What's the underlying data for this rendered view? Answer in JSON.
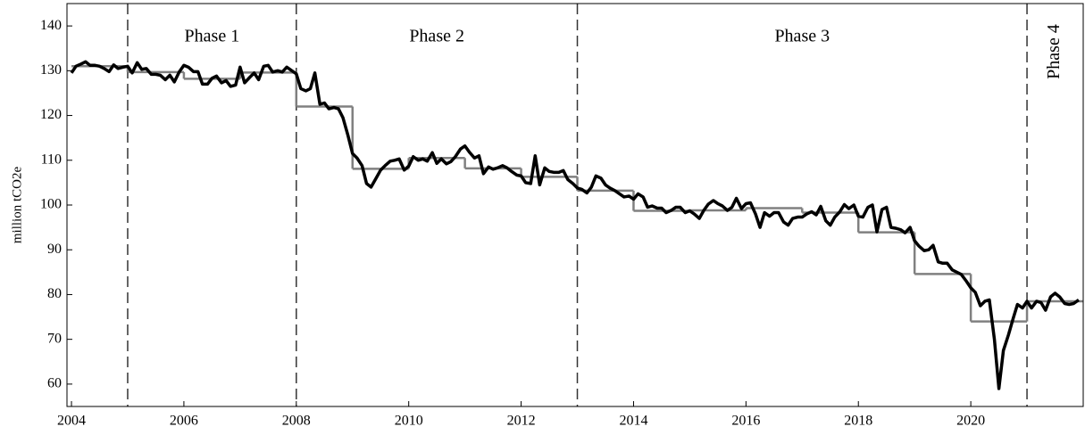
{
  "chart_data": {
    "type": "line",
    "ylabel": "million tCO2e",
    "xlim": [
      2003.92,
      2022.0
    ],
    "ylim": [
      55,
      145
    ],
    "xticks": [
      2004,
      2006,
      2008,
      2010,
      2012,
      2014,
      2016,
      2018,
      2020
    ],
    "yticks": [
      60,
      70,
      80,
      90,
      100,
      110,
      120,
      130,
      140
    ],
    "phase_lines": [
      2005,
      2008,
      2013,
      2021
    ],
    "phase_labels": [
      "Phase 1",
      "Phase 2",
      "Phase 3",
      "Phase 4"
    ],
    "series": [
      {
        "color": "#808080",
        "step": true,
        "x": [
          2004,
          2005,
          2006,
          2007,
          2008,
          2009,
          2010,
          2011,
          2012,
          2013,
          2014,
          2015,
          2016,
          2017,
          2018,
          2019,
          2020,
          2021
        ],
        "values": [
          131,
          129.7,
          128.2,
          129.6,
          122,
          108.1,
          110.5,
          108.2,
          106.3,
          103.2,
          98.7,
          98.8,
          99.3,
          98.3,
          93.9,
          84.6,
          74,
          78.5
        ]
      },
      {
        "color": "#000000",
        "step": false,
        "x": [
          2004,
          2004.08,
          2004.17,
          2004.25,
          2004.33,
          2004.42,
          2004.5,
          2004.58,
          2004.67,
          2004.75,
          2004.83,
          2004.92,
          2005,
          2005.08,
          2005.17,
          2005.25,
          2005.33,
          2005.42,
          2005.5,
          2005.58,
          2005.67,
          2005.75,
          2005.83,
          2005.92,
          2006,
          2006.08,
          2006.17,
          2006.25,
          2006.33,
          2006.42,
          2006.5,
          2006.58,
          2006.67,
          2006.75,
          2006.83,
          2006.92,
          2007,
          2007.08,
          2007.17,
          2007.25,
          2007.33,
          2007.42,
          2007.5,
          2007.58,
          2007.67,
          2007.75,
          2007.83,
          2007.92,
          2008,
          2008.08,
          2008.17,
          2008.25,
          2008.33,
          2008.42,
          2008.5,
          2008.58,
          2008.67,
          2008.75,
          2008.83,
          2008.92,
          2009,
          2009.08,
          2009.17,
          2009.25,
          2009.33,
          2009.42,
          2009.5,
          2009.58,
          2009.67,
          2009.75,
          2009.83,
          2009.92,
          2010,
          2010.08,
          2010.17,
          2010.25,
          2010.33,
          2010.42,
          2010.5,
          2010.58,
          2010.67,
          2010.75,
          2010.83,
          2010.92,
          2011,
          2011.08,
          2011.17,
          2011.25,
          2011.33,
          2011.42,
          2011.5,
          2011.58,
          2011.67,
          2011.75,
          2011.83,
          2011.92,
          2012,
          2012.08,
          2012.17,
          2012.25,
          2012.33,
          2012.42,
          2012.5,
          2012.58,
          2012.67,
          2012.75,
          2012.83,
          2012.92,
          2013,
          2013.08,
          2013.17,
          2013.25,
          2013.33,
          2013.42,
          2013.5,
          2013.58,
          2013.67,
          2013.75,
          2013.83,
          2013.92,
          2014,
          2014.08,
          2014.17,
          2014.25,
          2014.33,
          2014.42,
          2014.5,
          2014.58,
          2014.67,
          2014.75,
          2014.83,
          2014.92,
          2015,
          2015.08,
          2015.17,
          2015.25,
          2015.33,
          2015.42,
          2015.5,
          2015.58,
          2015.67,
          2015.75,
          2015.83,
          2015.92,
          2016,
          2016.08,
          2016.17,
          2016.25,
          2016.33,
          2016.42,
          2016.5,
          2016.58,
          2016.67,
          2016.75,
          2016.83,
          2016.92,
          2017,
          2017.08,
          2017.17,
          2017.25,
          2017.33,
          2017.42,
          2017.5,
          2017.58,
          2017.67,
          2017.75,
          2017.83,
          2017.92,
          2018,
          2018.08,
          2018.17,
          2018.25,
          2018.33,
          2018.42,
          2018.5,
          2018.58,
          2018.67,
          2018.75,
          2018.83,
          2018.92,
          2019,
          2019.08,
          2019.17,
          2019.25,
          2019.33,
          2019.42,
          2019.5,
          2019.58,
          2019.67,
          2019.75,
          2019.83,
          2019.92,
          2020,
          2020.08,
          2020.17,
          2020.25,
          2020.33,
          2020.42,
          2020.5,
          2020.58,
          2020.67,
          2020.75,
          2020.83,
          2020.92,
          2021,
          2021.08,
          2021.17,
          2021.25,
          2021.33,
          2021.42,
          2021.5,
          2021.58,
          2021.67,
          2021.75,
          2021.83,
          2021.92
        ],
        "values": [
          129.5,
          131,
          131.5,
          132,
          131.2,
          131.2,
          131,
          130.5,
          129.8,
          131.3,
          130.5,
          130.8,
          131,
          129.5,
          131.8,
          130.3,
          130.5,
          129.2,
          129.2,
          129,
          128,
          129,
          127.5,
          129.8,
          131.2,
          130.8,
          129.8,
          129.8,
          127,
          127,
          128.3,
          128.8,
          127.3,
          127.8,
          126.5,
          126.8,
          130.8,
          127.3,
          128.5,
          129.5,
          128,
          131,
          131.2,
          129.7,
          130,
          129.7,
          130.8,
          130,
          129.3,
          126,
          125.5,
          126,
          129.5,
          122.5,
          122.8,
          121.5,
          121.8,
          121.5,
          119.5,
          115.5,
          111.5,
          110.5,
          108.8,
          104.8,
          104,
          106,
          107.8,
          108.8,
          109.8,
          110,
          110.3,
          107.8,
          108.7,
          110.8,
          110,
          110.3,
          109.8,
          111.7,
          109.3,
          110.3,
          109.2,
          109.7,
          110.8,
          112.5,
          113.2,
          111.8,
          110.5,
          111,
          107,
          108.5,
          108,
          108.3,
          108.8,
          108.3,
          107.5,
          106.7,
          106.5,
          105,
          104.8,
          111,
          104.5,
          108.3,
          107.5,
          107.3,
          107.3,
          107.7,
          105.7,
          104.8,
          103.8,
          103.5,
          102.7,
          104,
          106.5,
          106,
          104.5,
          103.8,
          103.2,
          102.5,
          101.8,
          102,
          101.3,
          102.5,
          101.8,
          99.5,
          99.8,
          99.3,
          99.3,
          98.3,
          98.8,
          99.5,
          99.5,
          98.3,
          98.7,
          98,
          97,
          98.8,
          100.2,
          101,
          100.3,
          99.8,
          98.8,
          99.5,
          101.5,
          99.2,
          100.3,
          100.5,
          98,
          95,
          98.3,
          97.5,
          98.3,
          98.3,
          96.2,
          95.5,
          97,
          97.3,
          97.3,
          98,
          98.5,
          97.8,
          99.7,
          96.5,
          95.5,
          97.3,
          98.5,
          100.1,
          99.2,
          100,
          97.5,
          97.3,
          99.5,
          100,
          94,
          99,
          99.5,
          95,
          94.8,
          94.5,
          93.8,
          95,
          92,
          90.8,
          89.8,
          90,
          91,
          87.3,
          87,
          87,
          85.5,
          85,
          84.5,
          83,
          81.5,
          80.5,
          77.5,
          78.5,
          78.8,
          70,
          59,
          67.5,
          71,
          74.5,
          77.8,
          77,
          78.5,
          77,
          78.5,
          78.2,
          76.5,
          79.5,
          80.3,
          79.5,
          78,
          77.8,
          78,
          78.8
        ]
      }
    ]
  }
}
